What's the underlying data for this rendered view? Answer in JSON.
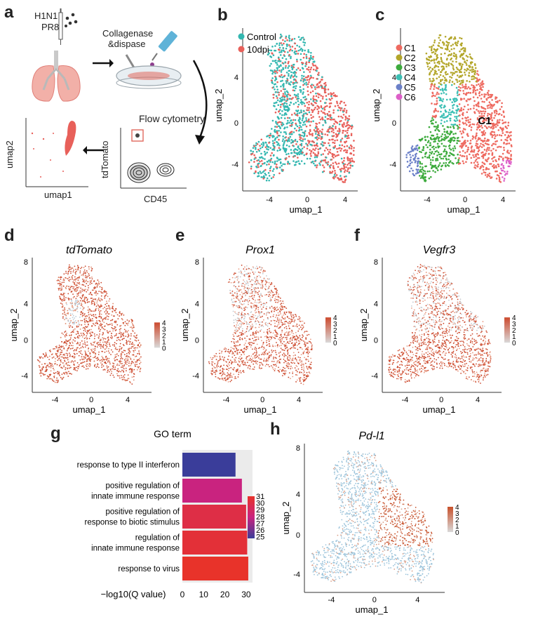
{
  "panels": {
    "a": {
      "letter": "a",
      "virus": "H1N1",
      "strain": "PR8",
      "enzyme_line1": "Collagenase",
      "enzyme_line2": "&dispase",
      "flow_title": "Flow cytometry",
      "flow_ylabel": "tdTomato",
      "flow_xlabel": "CD45",
      "mini_xlabel": "umap1",
      "mini_ylabel": "umap2"
    },
    "b": {
      "letter": "b",
      "legend": [
        {
          "label": "Control",
          "color": "#33b7b0"
        },
        {
          "label": "10dpi",
          "color": "#e8605a"
        }
      ],
      "xlabel": "umap_1",
      "ylabel": "umap_2",
      "xticks": [
        "-4",
        "0",
        "4"
      ],
      "yticks": [
        "4",
        "0",
        "-4"
      ]
    },
    "c": {
      "letter": "c",
      "legend": [
        {
          "label": "C1",
          "color": "#ee6a60"
        },
        {
          "label": "C2",
          "color": "#b3a62a"
        },
        {
          "label": "C3",
          "color": "#3dab3d"
        },
        {
          "label": "C4",
          "color": "#3bbfb4"
        },
        {
          "label": "C5",
          "color": "#6b80c8"
        },
        {
          "label": "C6",
          "color": "#dd5fc8"
        }
      ],
      "annotation": "C1",
      "xlabel": "umap_1",
      "ylabel": "umap_2",
      "xticks": [
        "-4",
        "0",
        "4"
      ],
      "yticks": [
        "4",
        "0",
        "-4"
      ]
    },
    "d": {
      "letter": "d",
      "title": "tdTomato",
      "xlabel": "umap_1",
      "ylabel": "umap_2",
      "xticks": [
        "-4",
        "0",
        "4"
      ],
      "yticks": [
        "8",
        "4",
        "0",
        "-4"
      ],
      "scale": [
        "4",
        "3",
        "2",
        "1",
        "0"
      ]
    },
    "e": {
      "letter": "e",
      "title": "Prox1",
      "xlabel": "umap_1",
      "ylabel": "umap_2",
      "xticks": [
        "-4",
        "0",
        "4"
      ],
      "yticks": [
        "8",
        "4",
        "0",
        "-4"
      ],
      "scale": [
        "4",
        "3",
        "2",
        "1",
        "0"
      ]
    },
    "f": {
      "letter": "f",
      "title": "Vegfr3",
      "xlabel": "umap_1",
      "ylabel": "umap_2",
      "xticks": [
        "-4",
        "0",
        "4"
      ],
      "yticks": [
        "8",
        "4",
        "0",
        "-4"
      ],
      "scale": [
        "4",
        "3",
        "2",
        "1",
        "0"
      ]
    },
    "h": {
      "letter": "h",
      "title": "Pd-l1",
      "xlabel": "umap_1",
      "ylabel": "umap_2",
      "xticks": [
        "-4",
        "0",
        "4"
      ],
      "yticks": [
        "8",
        "4",
        "0",
        "-4"
      ],
      "scale": [
        "4",
        "3",
        "2",
        "1",
        "0"
      ]
    }
  },
  "chart_data": {
    "type": "bar",
    "orientation": "horizontal",
    "letter": "g",
    "title": "GO term",
    "categories": [
      "response to type II interferon",
      "positive regulation of innate immune response",
      "positive regulation of response to biotic stimulus",
      "regulation of innate immune response",
      "response to virus"
    ],
    "category_lines": [
      [
        "response to type II interferon"
      ],
      [
        "positive regulation of",
        "innate immune response"
      ],
      [
        "positive regulation of",
        "response to biotic stimulus"
      ],
      [
        "regulation of",
        "innate immune response"
      ],
      [
        "response to virus"
      ]
    ],
    "values": [
      25,
      28,
      30,
      30.5,
      31
    ],
    "xlabel": "−log10(Q value)",
    "xticks": [
      "0",
      "10",
      "20",
      "30"
    ],
    "xlim": [
      0,
      33
    ],
    "colorbar": {
      "ticks": [
        "31",
        "30",
        "29",
        "28",
        "27",
        "26",
        "25"
      ],
      "min": 25,
      "max": 31,
      "low_color": "#3a3d9a",
      "high_color": "#e8332a"
    }
  }
}
